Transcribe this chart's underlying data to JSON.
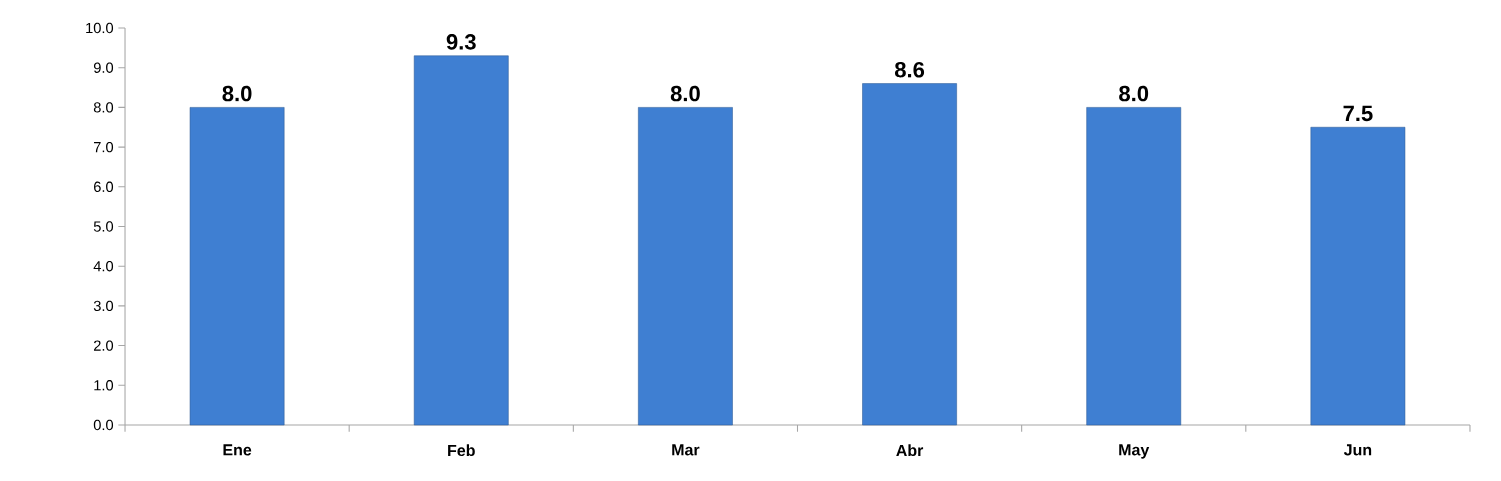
{
  "chart_data": {
    "type": "bar",
    "categories": [
      "Ene",
      "Feb",
      "Mar",
      "Abr",
      "May",
      "Jun"
    ],
    "values": [
      8.0,
      9.3,
      8.0,
      8.6,
      8.0,
      7.5
    ],
    "color": "#3f7fd2",
    "ylim": [
      0,
      10
    ],
    "yticks": [
      {
        "value": 0,
        "label": "0.0"
      },
      {
        "value": 1,
        "label": "1.0"
      },
      {
        "value": 2,
        "label": "2.0"
      },
      {
        "value": 3,
        "label": "3.0"
      },
      {
        "value": 4,
        "label": "4.0"
      },
      {
        "value": 5,
        "label": "5.0"
      },
      {
        "value": 6,
        "label": "6.0"
      },
      {
        "value": 7,
        "label": "7.0"
      },
      {
        "value": 8,
        "label": "8.0"
      },
      {
        "value": 9,
        "label": "9.0"
      },
      {
        "value": 10,
        "label": "10.0"
      }
    ],
    "value_labels": [
      "8.0",
      "9.3",
      "8.0",
      "8.6",
      "8.0",
      "7.5"
    ]
  }
}
